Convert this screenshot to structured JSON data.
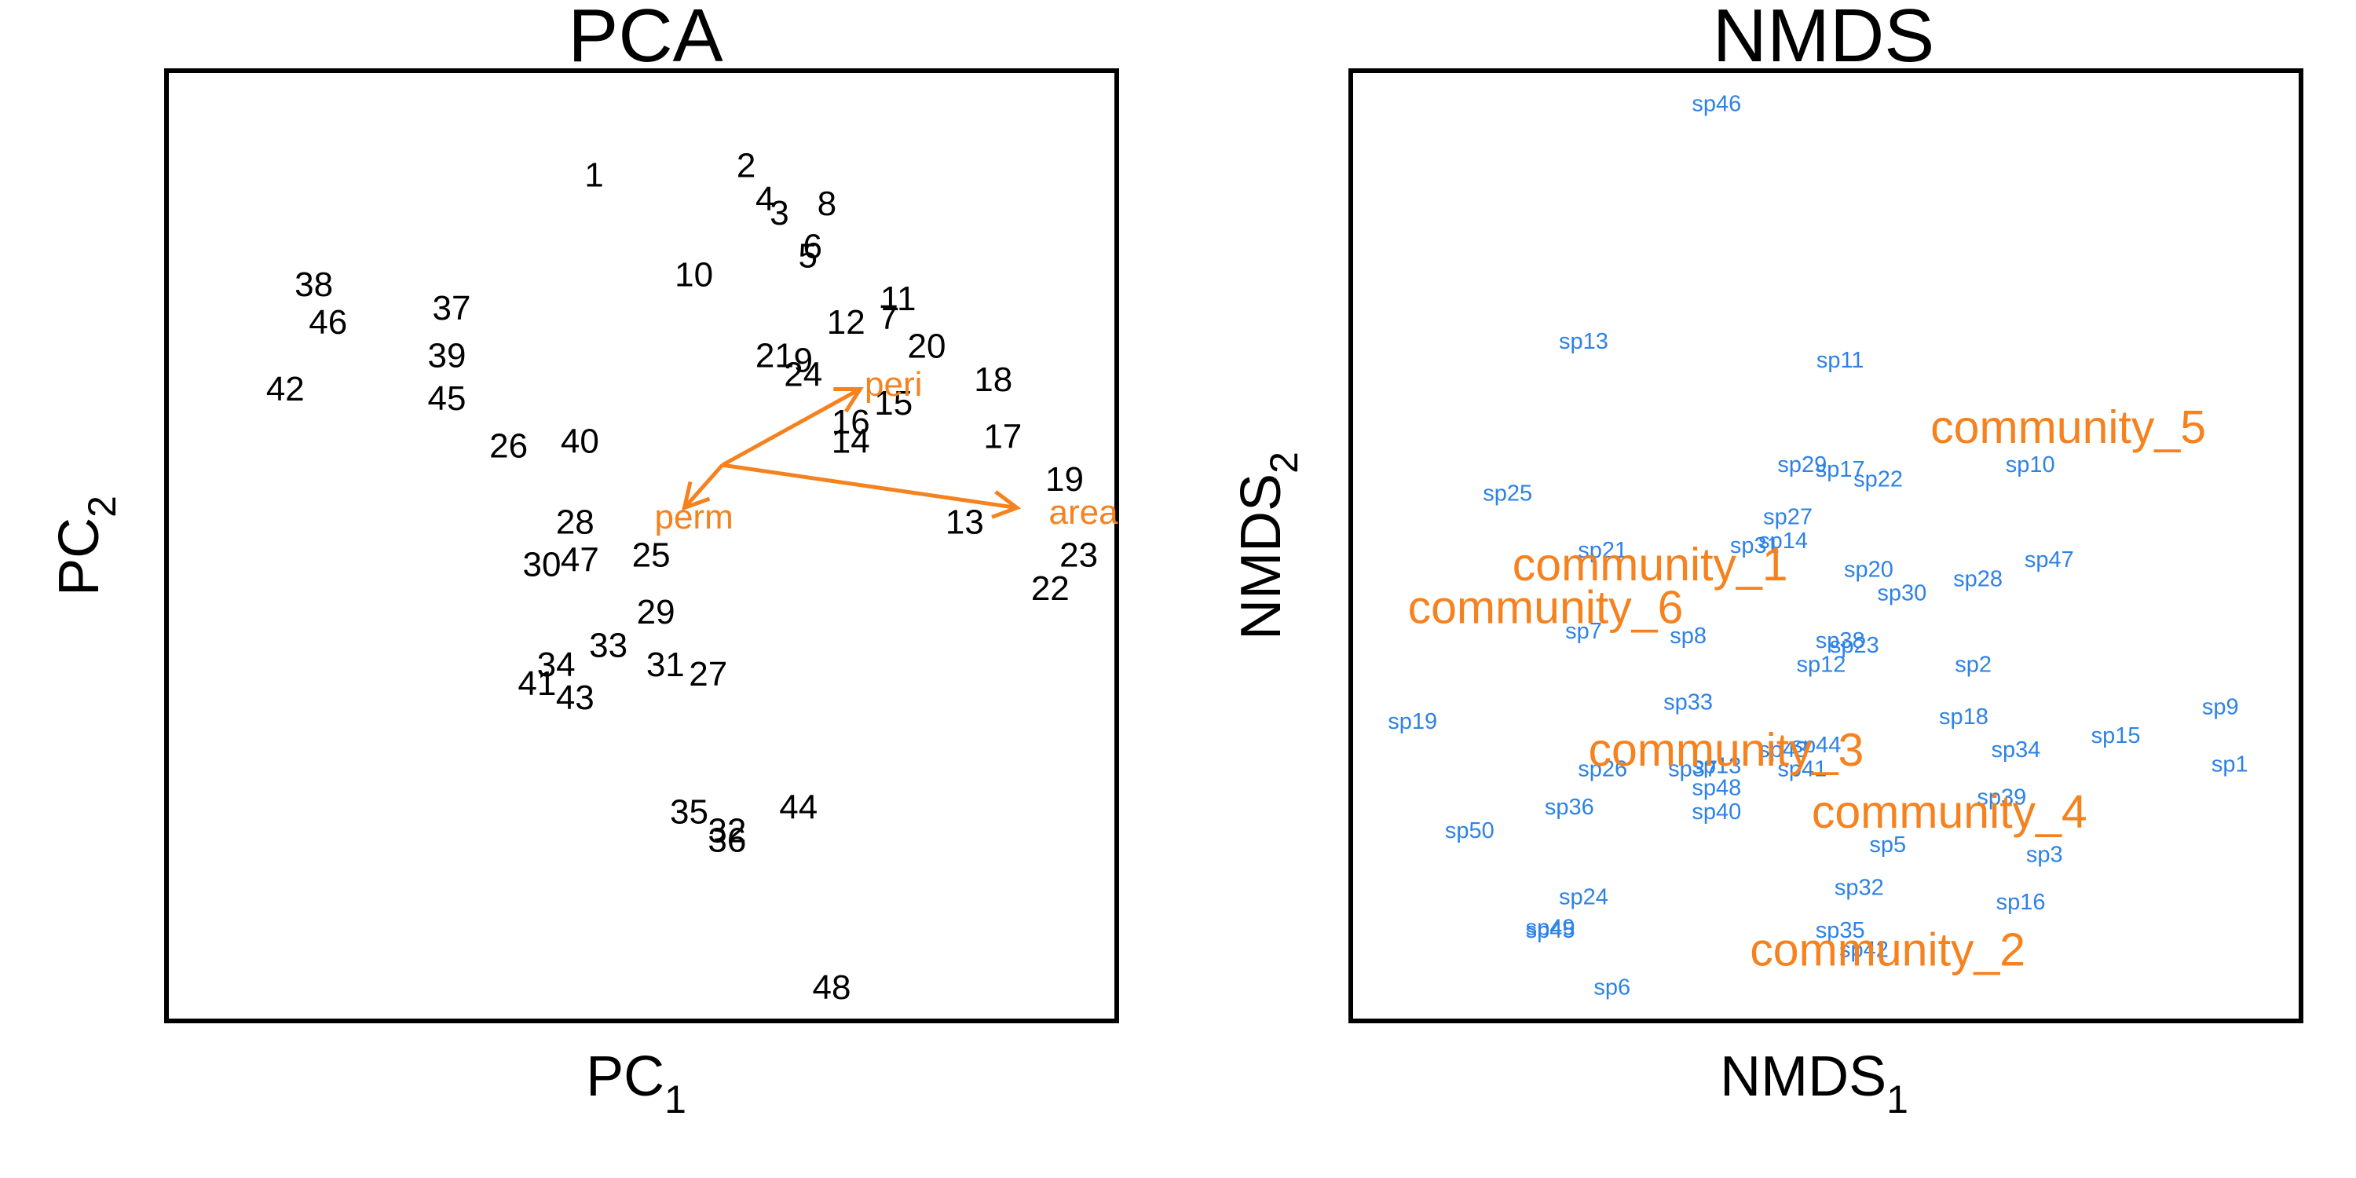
{
  "colors": {
    "sites": "#000000",
    "vectors": "#F5821F",
    "species": "#2D82E6",
    "communities": "#F5821F",
    "frame": "#000000"
  },
  "chart_data": [
    {
      "type": "scatter",
      "title": "PCA",
      "xlabel": "PC",
      "xlabel_sub": "1",
      "ylabel": "PC",
      "ylabel_sub": "2",
      "xlim": [
        0,
        100
      ],
      "ylim": [
        0,
        100
      ],
      "grid": false,
      "points": [
        {
          "label": "1",
          "x": 45.0,
          "y": 89.0
        },
        {
          "label": "2",
          "x": 61.0,
          "y": 90.0
        },
        {
          "label": "4",
          "x": 63.0,
          "y": 86.5
        },
        {
          "label": "3",
          "x": 64.5,
          "y": 85.0
        },
        {
          "label": "8",
          "x": 69.5,
          "y": 86.0
        },
        {
          "label": "6",
          "x": 68.0,
          "y": 81.5
        },
        {
          "label": "5",
          "x": 67.5,
          "y": 80.5
        },
        {
          "label": "10",
          "x": 55.5,
          "y": 78.5
        },
        {
          "label": "38",
          "x": 15.5,
          "y": 77.5
        },
        {
          "label": "46",
          "x": 17.0,
          "y": 73.5
        },
        {
          "label": "37",
          "x": 30.0,
          "y": 75.0
        },
        {
          "label": "39",
          "x": 29.5,
          "y": 70.0
        },
        {
          "label": "45",
          "x": 29.5,
          "y": 65.5
        },
        {
          "label": "42",
          "x": 12.5,
          "y": 66.5
        },
        {
          "label": "11",
          "x": 77.0,
          "y": 76.0
        },
        {
          "label": "7",
          "x": 76.0,
          "y": 74.0
        },
        {
          "label": "12",
          "x": 71.5,
          "y": 73.5
        },
        {
          "label": "20",
          "x": 80.0,
          "y": 71.0
        },
        {
          "label": "21",
          "x": 64.0,
          "y": 70.0
        },
        {
          "label": "9",
          "x": 67.0,
          "y": 69.5
        },
        {
          "label": "24",
          "x": 67.0,
          "y": 68.0
        },
        {
          "label": "18",
          "x": 87.0,
          "y": 67.5
        },
        {
          "label": "15",
          "x": 76.5,
          "y": 65.0
        },
        {
          "label": "16",
          "x": 72.0,
          "y": 63.0
        },
        {
          "label": "14",
          "x": 72.0,
          "y": 61.0
        },
        {
          "label": "17",
          "x": 88.0,
          "y": 61.5
        },
        {
          "label": "26",
          "x": 36.0,
          "y": 60.5
        },
        {
          "label": "40",
          "x": 43.5,
          "y": 61.0
        },
        {
          "label": "19",
          "x": 94.5,
          "y": 57.0
        },
        {
          "label": "13",
          "x": 84.0,
          "y": 52.5
        },
        {
          "label": "28",
          "x": 43.0,
          "y": 52.5
        },
        {
          "label": "30",
          "x": 39.5,
          "y": 48.0
        },
        {
          "label": "47",
          "x": 43.5,
          "y": 48.5
        },
        {
          "label": "25",
          "x": 51.0,
          "y": 49.0
        },
        {
          "label": "23",
          "x": 96.0,
          "y": 49.0
        },
        {
          "label": "22",
          "x": 93.0,
          "y": 45.5
        },
        {
          "label": "29",
          "x": 51.5,
          "y": 43.0
        },
        {
          "label": "33",
          "x": 46.5,
          "y": 39.5
        },
        {
          "label": "34",
          "x": 41.0,
          "y": 37.5
        },
        {
          "label": "31",
          "x": 52.5,
          "y": 37.5
        },
        {
          "label": "27",
          "x": 57.0,
          "y": 36.5
        },
        {
          "label": "41",
          "x": 39.0,
          "y": 35.5
        },
        {
          "label": "43",
          "x": 43.0,
          "y": 34.0
        },
        {
          "label": "35",
          "x": 55.0,
          "y": 22.0
        },
        {
          "label": "44",
          "x": 66.5,
          "y": 22.5
        },
        {
          "label": "32",
          "x": 59.0,
          "y": 20.0
        },
        {
          "label": "36",
          "x": 59.0,
          "y": 19.0
        },
        {
          "label": "48",
          "x": 70.0,
          "y": 3.5
        }
      ],
      "vectors": [
        {
          "label": "peri",
          "x0": 58.5,
          "y0": 58.5,
          "x1": 73.0,
          "y1": 66.5,
          "lx": 76.5,
          "ly": 67.0
        },
        {
          "label": "perm",
          "x0": 58.5,
          "y0": 58.5,
          "x1": 54.5,
          "y1": 54.0,
          "lx": 55.5,
          "ly": 53.0
        },
        {
          "label": "area",
          "x0": 58.5,
          "y0": 58.5,
          "x1": 89.5,
          "y1": 54.0,
          "lx": 96.5,
          "ly": 53.5
        }
      ]
    },
    {
      "type": "scatter",
      "title": "NMDS",
      "xlabel": "NMDS",
      "xlabel_sub": "1",
      "ylabel": "NMDS",
      "ylabel_sub": "2",
      "xlim": [
        0,
        100
      ],
      "ylim": [
        0,
        100
      ],
      "grid": false,
      "species": [
        {
          "label": "sp46",
          "x": 38.5,
          "y": 96.5
        },
        {
          "label": "sp13",
          "x": 24.5,
          "y": 71.5
        },
        {
          "label": "sp11",
          "x": 51.5,
          "y": 69.5
        },
        {
          "label": "sp25",
          "x": 16.5,
          "y": 55.5
        },
        {
          "label": "sp29",
          "x": 47.5,
          "y": 58.5
        },
        {
          "label": "sp17",
          "x": 51.5,
          "y": 58.0
        },
        {
          "label": "sp22",
          "x": 55.5,
          "y": 57.0
        },
        {
          "label": "sp10",
          "x": 71.5,
          "y": 58.5
        },
        {
          "label": "sp27",
          "x": 46.0,
          "y": 53.0
        },
        {
          "label": "sp21",
          "x": 26.5,
          "y": 49.5
        },
        {
          "label": "sp31",
          "x": 42.5,
          "y": 50.0
        },
        {
          "label": "sp14",
          "x": 45.5,
          "y": 50.5
        },
        {
          "label": "sp20",
          "x": 54.5,
          "y": 47.5
        },
        {
          "label": "sp47",
          "x": 73.5,
          "y": 48.5
        },
        {
          "label": "sp28",
          "x": 66.0,
          "y": 46.5
        },
        {
          "label": "sp30",
          "x": 58.0,
          "y": 45.0
        },
        {
          "label": "sp7",
          "x": 24.5,
          "y": 41.0
        },
        {
          "label": "sp8",
          "x": 35.5,
          "y": 40.5
        },
        {
          "label": "sp38",
          "x": 51.5,
          "y": 40.0
        },
        {
          "label": "sp23",
          "x": 53.0,
          "y": 39.5
        },
        {
          "label": "sp12",
          "x": 49.5,
          "y": 37.5
        },
        {
          "label": "sp2",
          "x": 65.5,
          "y": 37.5
        },
        {
          "label": "sp33",
          "x": 35.5,
          "y": 33.5
        },
        {
          "label": "sp19",
          "x": 6.5,
          "y": 31.5
        },
        {
          "label": "sp18",
          "x": 64.5,
          "y": 32.0
        },
        {
          "label": "sp9",
          "x": 91.5,
          "y": 33.0
        },
        {
          "label": "sp15",
          "x": 80.5,
          "y": 30.0
        },
        {
          "label": "sp43",
          "x": 45.5,
          "y": 28.5
        },
        {
          "label": "sp44",
          "x": 49.0,
          "y": 29.0
        },
        {
          "label": "sp34",
          "x": 70.0,
          "y": 28.5
        },
        {
          "label": "sp1",
          "x": 92.5,
          "y": 27.0
        },
        {
          "label": "sp26",
          "x": 26.5,
          "y": 26.5
        },
        {
          "label": "sp37",
          "x": 36.0,
          "y": 26.5
        },
        {
          "label": "sp13b",
          "x": 38.5,
          "y": 26.8,
          "text": "sp13"
        },
        {
          "label": "sp41",
          "x": 47.5,
          "y": 26.5
        },
        {
          "label": "sp48",
          "x": 38.5,
          "y": 24.5
        },
        {
          "label": "sp39",
          "x": 68.5,
          "y": 23.5
        },
        {
          "label": "sp36",
          "x": 23.0,
          "y": 22.5
        },
        {
          "label": "sp40",
          "x": 38.5,
          "y": 22.0
        },
        {
          "label": "sp50",
          "x": 12.5,
          "y": 20.0
        },
        {
          "label": "sp5",
          "x": 56.5,
          "y": 18.5
        },
        {
          "label": "sp3",
          "x": 73.0,
          "y": 17.5
        },
        {
          "label": "sp24",
          "x": 24.5,
          "y": 13.0
        },
        {
          "label": "sp32",
          "x": 53.5,
          "y": 14.0
        },
        {
          "label": "sp16",
          "x": 70.5,
          "y": 12.5
        },
        {
          "label": "sp45",
          "x": 21.0,
          "y": 9.5
        },
        {
          "label": "sp49",
          "x": 21.0,
          "y": 9.8
        },
        {
          "label": "sp35",
          "x": 51.5,
          "y": 9.5
        },
        {
          "label": "sp42",
          "x": 54.0,
          "y": 7.5
        },
        {
          "label": "sp6",
          "x": 27.5,
          "y": 3.5
        }
      ],
      "communities": [
        {
          "label": "community_5",
          "x": 75.5,
          "y": 62.5
        },
        {
          "label": "community_1",
          "x": 31.5,
          "y": 48.0
        },
        {
          "label": "community_6",
          "x": 20.5,
          "y": 43.5
        },
        {
          "label": "community_3",
          "x": 39.5,
          "y": 28.5
        },
        {
          "label": "community_4",
          "x": 63.0,
          "y": 22.0
        },
        {
          "label": "community_2",
          "x": 56.5,
          "y": 7.5
        }
      ]
    }
  ]
}
